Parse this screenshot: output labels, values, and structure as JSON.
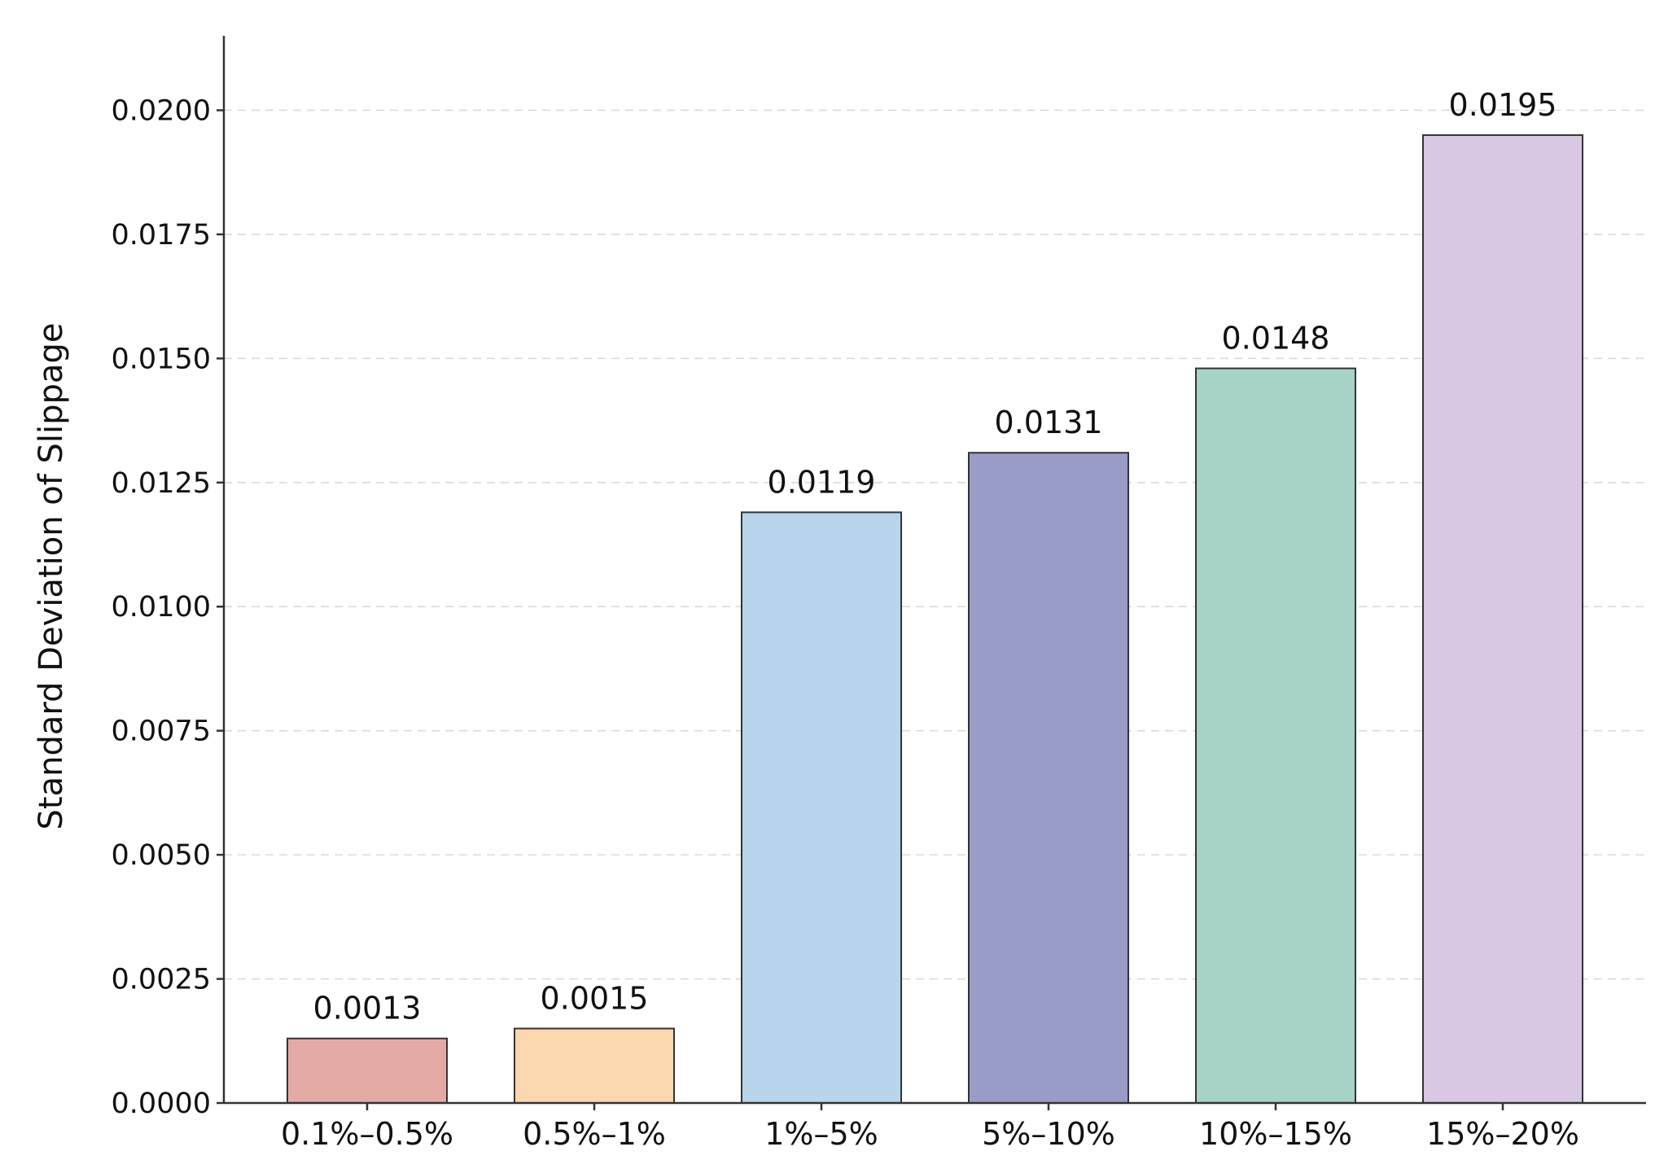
{
  "chart_data": {
    "type": "bar",
    "title": "",
    "xlabel": "",
    "ylabel": "Standard Deviation of Slippage",
    "categories": [
      "0.1%–0.5%",
      "0.5%–1%",
      "1%–5%",
      "5%–10%",
      "10%–15%",
      "15%–20%"
    ],
    "values": [
      0.0013,
      0.0015,
      0.0119,
      0.0131,
      0.0148,
      0.0195
    ],
    "data_labels": [
      "0.0013",
      "0.0015",
      "0.0119",
      "0.0131",
      "0.0148",
      "0.0195"
    ],
    "colors": [
      "#e3aaa4",
      "#fbd7b0",
      "#b8d5ec",
      "#9a9cc8",
      "#a7d2c8",
      "#d8c8e4"
    ],
    "ylim": [
      0,
      0.0215
    ],
    "yticks": [
      0,
      0.0025,
      0.005,
      0.0075,
      0.01,
      0.0125,
      0.015,
      0.0175,
      0.02
    ],
    "ytick_labels": [
      "0.0000",
      "0.0025",
      "0.0050",
      "0.0075",
      "0.0100",
      "0.0125",
      "0.0150",
      "0.0175",
      "0.0200"
    ],
    "grid": true,
    "legend": "none"
  }
}
